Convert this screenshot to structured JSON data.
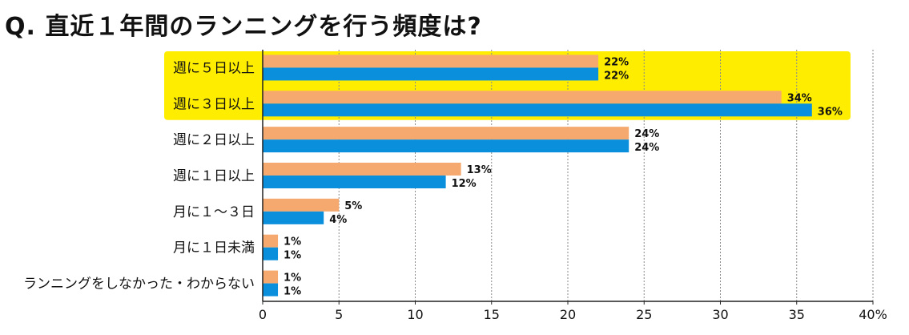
{
  "title": "Q. 直近１年間のランニングを行う頻度は?",
  "colors": {
    "series_a": "#F5A96E",
    "series_b": "#0A8FDC",
    "highlight": "#FFED00",
    "grid": "#8A8A8A",
    "axis": "#222222"
  },
  "chart_data": {
    "type": "bar",
    "orientation": "horizontal",
    "title": "Q. 直近１年間のランニングを行う頻度は?",
    "xlabel": "",
    "ylabel": "",
    "xlim": [
      0,
      40
    ],
    "grid": true,
    "categories": [
      "週に５日以上",
      "週に３日以上",
      "週に２日以上",
      "週に１日以上",
      "月に１～３日",
      "月に１日未満",
      "ランニングをしなかった・わからない"
    ],
    "series": [
      {
        "name": "series_a",
        "values": [
          22,
          34,
          24,
          13,
          5,
          1,
          1
        ],
        "labels": [
          "22%",
          "34%",
          "24%",
          "13%",
          "5%",
          "1%",
          "1%"
        ]
      },
      {
        "name": "series_b",
        "values": [
          22,
          36,
          24,
          12,
          4,
          1,
          1
        ],
        "labels": [
          "22%",
          "36%",
          "24%",
          "12%",
          "4%",
          "1%",
          "1%"
        ]
      }
    ],
    "highlighted_categories": [
      0,
      1
    ],
    "x_ticks": [
      0,
      5,
      10,
      15,
      20,
      25,
      30,
      35,
      40
    ],
    "x_tick_labels": [
      "0",
      "5",
      "10",
      "15",
      "20",
      "25",
      "30",
      "35",
      "40%"
    ]
  }
}
